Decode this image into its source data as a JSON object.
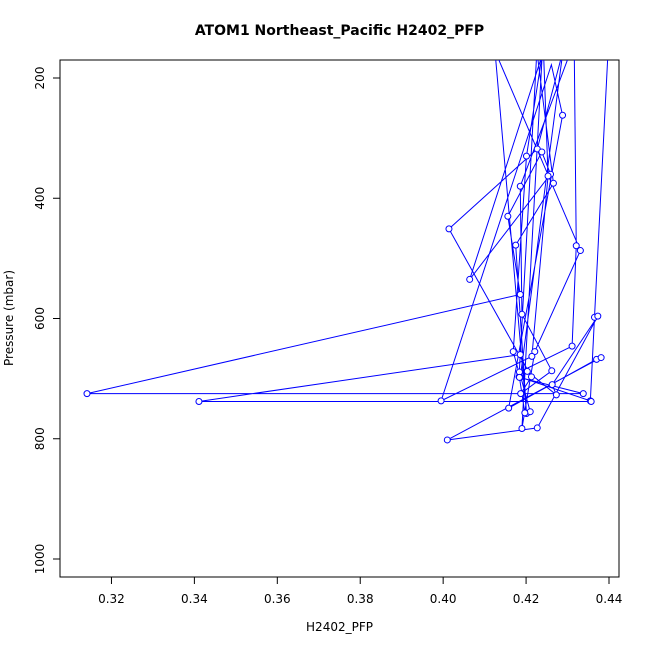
{
  "chart_data": {
    "type": "line",
    "title": "ATOM1 Northeast_Pacific H2402_PFP",
    "xlabel": "H2402_PFP",
    "ylabel": "Pressure (mbar)",
    "xlim": [
      0.31,
      0.44
    ],
    "ylim": [
      1000,
      200
    ],
    "y_reversed": true,
    "x_ticks": [
      0.32,
      0.34,
      0.36,
      0.38,
      0.4,
      0.42,
      0.44
    ],
    "x_tick_labels": [
      "0.32",
      "0.34",
      "0.36",
      "0.38",
      "0.40",
      "0.42",
      "0.44"
    ],
    "y_ticks": [
      200,
      400,
      600,
      800,
      1000
    ],
    "y_tick_labels": [
      "200",
      "400",
      "600",
      "800",
      "1000"
    ],
    "grid": false,
    "legend": "none",
    "color": "#0000ff",
    "series": [
      {
        "points": [
          [
            0.4397,
            165
          ],
          [
            0.4365,
            598
          ],
          [
            0.4355,
            737
          ],
          [
            0.4183,
            697
          ],
          [
            0.4226,
            155
          ],
          [
            0.4266,
            375
          ],
          [
            0.4175,
            478
          ],
          [
            0.4201,
            758
          ],
          [
            0.4125,
            155
          ],
          [
            0.4331,
            487
          ],
          [
            0.4221,
            655
          ],
          [
            0.419,
            783
          ],
          [
            0.4239,
            160
          ],
          [
            0.4201,
            330
          ],
          [
            0.4169,
            655
          ],
          [
            0.4186,
            698
          ],
          [
            0.4289,
            155
          ],
          [
            0.4227,
            318
          ],
          [
            0.4014,
            451
          ],
          [
            0.4213,
            697
          ],
          [
            0.4187,
            725
          ],
          [
            0.4262,
            687
          ],
          [
            0.419,
            593
          ],
          [
            0.4186,
            380
          ],
          [
            0.4316,
            140
          ],
          [
            0.4321,
            479
          ],
          [
            0.4311,
            646
          ],
          [
            0.4184,
            689
          ],
          [
            0.421,
            755
          ],
          [
            0.4197,
            757
          ],
          [
            0.4184,
            698
          ],
          [
            0.4338,
            725
          ],
          [
            0.3141,
            725
          ],
          [
            0.4186,
            560
          ],
          [
            0.4156,
            430
          ],
          [
            0.4238,
            323
          ],
          [
            0.4259,
            360
          ],
          [
            0.4064,
            535
          ],
          [
            0.4242,
            155
          ],
          [
            0.4253,
            363
          ],
          [
            0.4214,
            663
          ],
          [
            0.3995,
            737
          ],
          [
            0.4261,
            178
          ],
          [
            0.4288,
            262
          ],
          [
            0.4158,
            749
          ],
          [
            0.437,
            668
          ],
          [
            0.4381,
            665
          ],
          [
            0.401,
            802
          ],
          [
            0.4227,
            782
          ],
          [
            0.4373,
            596
          ],
          [
            0.4263,
            710
          ],
          [
            0.4273,
            727
          ],
          [
            0.4203,
            688
          ],
          [
            0.4186,
            660
          ],
          [
            0.3411,
            738
          ],
          [
            0.4357,
            738
          ]
        ]
      }
    ]
  }
}
